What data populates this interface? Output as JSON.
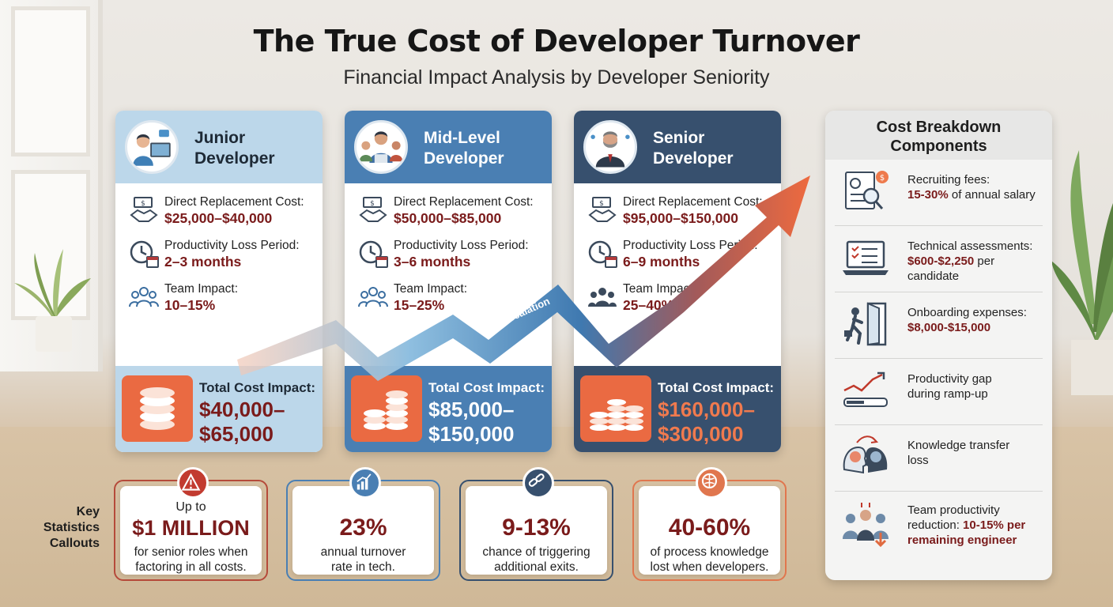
{
  "header": {
    "title": "The True Cost of Developer Turnover",
    "subtitle": "Financial Impact Analysis by Developer Seniority"
  },
  "colors": {
    "junior": "#b9d6ea",
    "mid": "#4a7fb3",
    "senior": "#37506e",
    "value_red": "#7a1b1b",
    "accent_orange": "#ea6a42"
  },
  "cards": [
    {
      "title": "Junior Developer",
      "direct_label": "Direct Replacement Cost:",
      "direct_value": "$25,000–$40,000",
      "productivity_label": "Productivity Loss Period:",
      "productivity_value": "2–3 months",
      "team_label": "Team Impact:",
      "team_value": "10–15%",
      "total_label": "Total Cost Impact:",
      "total_value_1": "$40,000–",
      "total_value_2": "$65,000"
    },
    {
      "title": "Mid-Level Developer",
      "direct_label": "Direct Replacement Cost:",
      "direct_value": "$50,000–$85,000",
      "productivity_label": "Productivity Loss Period:",
      "productivity_value": "3–6 months",
      "team_label": "Team Impact:",
      "team_value": "15–25%",
      "total_label": "Total Cost Impact:",
      "total_value_1": "$85,000–",
      "total_value_2": "$150,000"
    },
    {
      "title": "Senior Developer",
      "direct_label": "Direct Replacement Cost:",
      "direct_value": "$95,000–$150,000",
      "productivity_label": "Productivity Loss Period:",
      "productivity_value": "6–9 months",
      "team_label": "Team Impact:",
      "team_value": "25–40%",
      "total_label": "Total Cost Impact:",
      "total_value_1": "$160,000–",
      "total_value_2": "$300,000"
    }
  ],
  "arrow_label": "Cost Escalation",
  "breakdown": {
    "title_1": "Cost Breakdown",
    "title_2": "Components",
    "items": [
      {
        "icon": "recruiting-document-icon",
        "text": "Recruiting fees:",
        "value": "15-30%",
        "rest": " of annual salary"
      },
      {
        "icon": "laptop-checklist-icon",
        "text": "Technical assessments:",
        "value": "$600-$2,250",
        "rest": " per candidate"
      },
      {
        "icon": "person-door-icon",
        "text": "Onboarding expenses:",
        "value": "$8,000-$15,000",
        "rest": ""
      },
      {
        "icon": "trend-gauge-icon",
        "text": "Productivity gap during ramp-up",
        "value": "",
        "rest": ""
      },
      {
        "icon": "brain-transfer-icon",
        "text": "Knowledge transfer loss",
        "value": "",
        "rest": ""
      },
      {
        "icon": "team-down-arrow-icon",
        "text": "Team productivity reduction:",
        "value": "10-15% per remaining engineer",
        "rest": ""
      }
    ]
  },
  "stats": {
    "section_label_1": "Key",
    "section_label_2": "Statistics",
    "section_label_3": "Callouts",
    "items": [
      {
        "icon": "warning-icon",
        "pre": "Up to",
        "big": "$1 MILLION",
        "small_1": "for senior roles when",
        "small_2": "factoring in all costs."
      },
      {
        "icon": "bar-chart-icon",
        "pre": "",
        "big": "23%",
        "small_1": "annual turnover",
        "small_2": "rate in tech."
      },
      {
        "icon": "broken-link-icon",
        "pre": "",
        "big": "9-13%",
        "small_1": "chance of triggering",
        "small_2": "additional exits."
      },
      {
        "icon": "brain-icon",
        "pre": "",
        "big": "40-60%",
        "small_1": "of process knowledge",
        "small_2": "lost when developers."
      }
    ]
  }
}
